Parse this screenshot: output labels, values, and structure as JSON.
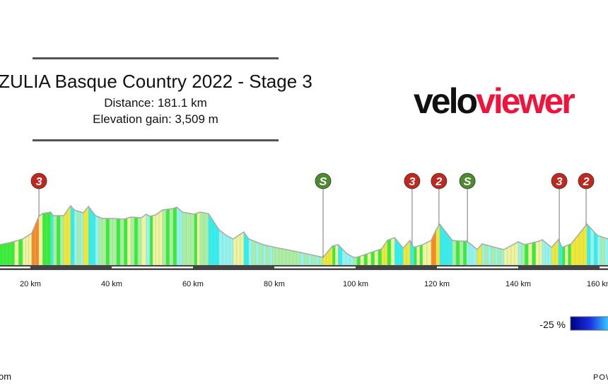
{
  "header": {
    "title": "ZULIA Basque Country 2022 - Stage 3",
    "distance": "Distance: 181.1 km",
    "elevation_gain": "Elevation gain: 3,509 m"
  },
  "logo": {
    "part1": "velo",
    "part2": "viewer",
    "color1": "#111111",
    "color2": "#f0143c"
  },
  "legend": {
    "min_label": "-25 %"
  },
  "footer": {
    "left_text": "om",
    "right_text": "POW"
  },
  "chart_data": {
    "type": "area",
    "title": "ZULIA Basque Country 2022 - Stage 3",
    "xlabel": "",
    "ylabel": "",
    "x_unit": "km",
    "x_ticks": [
      "20 km",
      "40 km",
      "60 km",
      "80 km",
      "100 km",
      "120 km",
      "140 km",
      "160 km"
    ],
    "x_tick_values": [
      20,
      40,
      60,
      80,
      100,
      120,
      140,
      160
    ],
    "xlim": [
      12.5,
      162.1
    ],
    "grid": false,
    "colored_by": "gradient",
    "profile_relative_elevation": [
      [
        12.5,
        29
      ],
      [
        15.1,
        32
      ],
      [
        18.1,
        37
      ],
      [
        20.3,
        45
      ],
      [
        22.1,
        69
      ],
      [
        23.0,
        73
      ],
      [
        25.0,
        75
      ],
      [
        25.6,
        70
      ],
      [
        28.2,
        70
      ],
      [
        29.9,
        84
      ],
      [
        30.8,
        78
      ],
      [
        33.0,
        74
      ],
      [
        34.3,
        83
      ],
      [
        36.0,
        70
      ],
      [
        37.7,
        66
      ],
      [
        40.3,
        66
      ],
      [
        43.0,
        65
      ],
      [
        44.7,
        68
      ],
      [
        47.3,
        67
      ],
      [
        48.5,
        72
      ],
      [
        49.4,
        69
      ],
      [
        50.8,
        71
      ],
      [
        52.5,
        78
      ],
      [
        55.1,
        80
      ],
      [
        56.0,
        82
      ],
      [
        57.4,
        75
      ],
      [
        60.3,
        72
      ],
      [
        61.7,
        75
      ],
      [
        63.8,
        73
      ],
      [
        66.4,
        50
      ],
      [
        68.2,
        42
      ],
      [
        69.9,
        37
      ],
      [
        72.5,
        47
      ],
      [
        73.7,
        37
      ],
      [
        77.2,
        29
      ],
      [
        80.3,
        25
      ],
      [
        86.4,
        18
      ],
      [
        92.0,
        11
      ],
      [
        94.3,
        27
      ],
      [
        95.7,
        29
      ],
      [
        97.7,
        17
      ],
      [
        99.5,
        11
      ],
      [
        100.3,
        11
      ],
      [
        106.4,
        23
      ],
      [
        107.8,
        35
      ],
      [
        109.6,
        39
      ],
      [
        111.7,
        24
      ],
      [
        113.4,
        35
      ],
      [
        114.3,
        25
      ],
      [
        116.5,
        29
      ],
      [
        118.6,
        35
      ],
      [
        119.8,
        50
      ],
      [
        120.7,
        58
      ],
      [
        123.8,
        35
      ],
      [
        125.6,
        34
      ],
      [
        127.3,
        34
      ],
      [
        128.7,
        28
      ],
      [
        129.9,
        22
      ],
      [
        131.1,
        30
      ],
      [
        132.5,
        28
      ],
      [
        134.3,
        25
      ],
      [
        136.5,
        22
      ],
      [
        140.0,
        33
      ],
      [
        141.6,
        29
      ],
      [
        145.2,
        34
      ],
      [
        145.9,
        36
      ],
      [
        148.2,
        25
      ],
      [
        149.9,
        36
      ],
      [
        150.8,
        25
      ],
      [
        153.0,
        30
      ],
      [
        155.1,
        45
      ],
      [
        156.9,
        58
      ],
      [
        159.5,
        42
      ],
      [
        162.1,
        37
      ]
    ],
    "markers": [
      {
        "km": 22.1,
        "label": "3",
        "type": "climb"
      },
      {
        "km": 92.0,
        "label": "S",
        "type": "sprint"
      },
      {
        "km": 113.9,
        "label": "3",
        "type": "climb"
      },
      {
        "km": 120.5,
        "label": "2",
        "type": "climb"
      },
      {
        "km": 127.5,
        "label": "S",
        "type": "sprint"
      },
      {
        "km": 150.1,
        "label": "3",
        "type": "climb"
      },
      {
        "km": 156.7,
        "label": "2",
        "type": "climb"
      }
    ],
    "colors": {
      "climb_marker": "#c0281e",
      "sprint_marker": "#4e8a2e",
      "outline": "#aaaaaa"
    }
  }
}
